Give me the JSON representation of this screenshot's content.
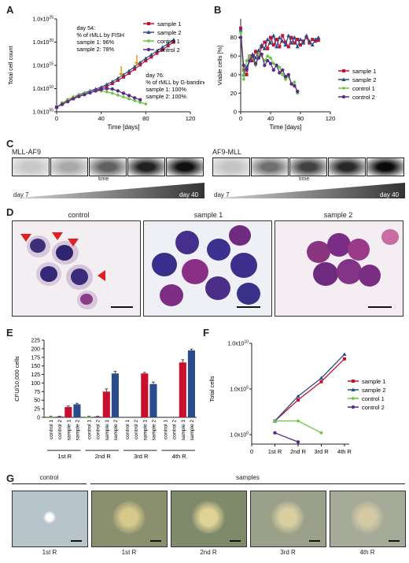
{
  "panels": {
    "A": "A",
    "B": "B",
    "C": "C",
    "D": "D",
    "E": "E",
    "F": "F",
    "G": "G"
  },
  "colors": {
    "sample1": "#c8102e",
    "sample2": "#2b4c8c",
    "control1": "#6cc644",
    "control2": "#5b2a86",
    "annotation": "#e39b1f"
  },
  "chart_data": [
    {
      "id": "A",
      "type": "line",
      "ylabel": "Total cell count",
      "xlabel": "Time [days]",
      "xticks": [
        "0",
        "40",
        "80",
        "120"
      ],
      "xlim": [
        0,
        120
      ],
      "yscale": "log",
      "yticks": [
        "1.0x10^05",
        "1.0x10^10",
        "1.0x10^15",
        "1.0x10^20",
        "1.0x10^25"
      ],
      "ylim_log10": [
        5,
        25
      ],
      "legend": [
        "sample 1",
        "sample 2",
        "control 1",
        "control 2"
      ],
      "legend_position": "top-right",
      "annotations": [
        {
          "lines": [
            "day 54:",
            "% of rMLL by FISH",
            "sample 1: 96%",
            "sample 2: 78%"
          ]
        },
        {
          "lines": [
            "day 76:",
            "% of rMLL by G-banding",
            "sample 1: 100%",
            "sample 2: 100%"
          ]
        }
      ],
      "arrow_days": [
        58,
        72
      ],
      "series": [
        {
          "name": "sample 1",
          "x": [
            0,
            5,
            10,
            15,
            20,
            25,
            30,
            35,
            40,
            45,
            50,
            55,
            60,
            65,
            70,
            75,
            80,
            85,
            90,
            95,
            100,
            105
          ],
          "y_log10": [
            6,
            6.8,
            7.5,
            8.0,
            8.5,
            8.9,
            9.2,
            9.6,
            10.0,
            10.5,
            11.1,
            11.8,
            12.5,
            13.3,
            14.2,
            15.1,
            16.0,
            16.8,
            17.6,
            18.4,
            19.2,
            20.0
          ]
        },
        {
          "name": "sample 2",
          "x": [
            0,
            5,
            10,
            15,
            20,
            25,
            30,
            35,
            40,
            45,
            50,
            55,
            60,
            65,
            70,
            75,
            80,
            85,
            90,
            95,
            100,
            105
          ],
          "y_log10": [
            6,
            6.9,
            7.6,
            8.2,
            8.7,
            9.1,
            9.5,
            9.9,
            10.3,
            10.9,
            11.5,
            12.2,
            13.0,
            13.8,
            14.7,
            15.6,
            16.5,
            17.3,
            18.1,
            18.9,
            19.7,
            20.5
          ]
        },
        {
          "name": "control 1",
          "x": [
            0,
            5,
            10,
            15,
            20,
            25,
            30,
            35,
            40,
            45,
            50,
            55,
            60,
            65,
            70,
            75,
            80
          ],
          "y_log10": [
            6,
            6.9,
            7.6,
            8.2,
            8.6,
            9.0,
            9.3,
            9.5,
            9.5,
            9.3,
            9.0,
            8.6,
            8.2,
            7.8,
            7.4,
            7.0,
            6.7
          ]
        },
        {
          "name": "control 2",
          "x": [
            0,
            5,
            10,
            15,
            20,
            25,
            30,
            35,
            40,
            45,
            50,
            55,
            60,
            65,
            70,
            75
          ],
          "y_log10": [
            6,
            6.6,
            7.2,
            7.8,
            8.3,
            8.7,
            9.1,
            9.5,
            9.8,
            10.0,
            9.9,
            9.5,
            9.0,
            8.5,
            8.0,
            7.6
          ]
        }
      ]
    },
    {
      "id": "B",
      "type": "line",
      "ylabel": "Viable cells [%]",
      "xlabel": "Time [days]",
      "xticks": [
        "0",
        "40",
        "80",
        "120"
      ],
      "xlim": [
        0,
        120
      ],
      "yticks": [
        "0",
        "20",
        "40",
        "60",
        "80"
      ],
      "ylim": [
        0,
        100
      ],
      "legend": [
        "sample 1",
        "sample 2",
        "control 1",
        "control 2"
      ],
      "legend_position": "right",
      "series": [
        {
          "name": "sample 1",
          "x": [
            0,
            4,
            8,
            12,
            16,
            20,
            24,
            28,
            32,
            36,
            40,
            44,
            48,
            52,
            56,
            60,
            64,
            68,
            72,
            76,
            80,
            84,
            88,
            92,
            96,
            100,
            104
          ],
          "y": [
            90,
            45,
            40,
            60,
            55,
            65,
            58,
            70,
            75,
            68,
            80,
            72,
            78,
            70,
            82,
            75,
            70,
            80,
            74,
            78,
            72,
            76,
            80,
            74,
            78,
            76,
            77
          ]
        },
        {
          "name": "sample 2",
          "x": [
            0,
            4,
            8,
            12,
            16,
            20,
            24,
            28,
            32,
            36,
            40,
            44,
            48,
            52,
            56,
            60,
            64,
            68,
            72,
            76,
            80,
            84,
            88,
            92,
            96,
            100,
            104
          ],
          "y": [
            88,
            40,
            48,
            55,
            62,
            58,
            66,
            72,
            68,
            78,
            74,
            82,
            70,
            80,
            76,
            72,
            82,
            74,
            80,
            70,
            78,
            74,
            82,
            76,
            72,
            78,
            80
          ]
        },
        {
          "name": "control 1",
          "x": [
            0,
            4,
            8,
            12,
            16,
            20,
            24,
            28,
            32,
            36,
            40,
            44,
            48,
            52,
            56,
            60,
            64,
            68,
            72,
            76
          ],
          "y": [
            85,
            35,
            55,
            60,
            58,
            50,
            62,
            60,
            55,
            60,
            58,
            52,
            50,
            48,
            40,
            35,
            38,
            30,
            32,
            20
          ]
        },
        {
          "name": "control 2",
          "x": [
            0,
            4,
            8,
            12,
            16,
            20,
            24,
            28,
            32,
            36,
            40,
            44,
            48,
            52,
            56,
            60,
            64,
            68,
            72,
            76
          ],
          "y": [
            80,
            50,
            45,
            55,
            60,
            52,
            58,
            62,
            50,
            55,
            52,
            45,
            50,
            42,
            45,
            38,
            40,
            30,
            28,
            22
          ]
        }
      ]
    },
    {
      "id": "E",
      "type": "bar",
      "ylabel": "CFU/10,000 cells",
      "yticks": [
        "0",
        "25",
        "50",
        "75",
        "100",
        "125",
        "150",
        "175",
        "200",
        "225"
      ],
      "ylim": [
        0,
        225
      ],
      "groups": [
        "1st R",
        "2nd R",
        "3rd R",
        "4th R"
      ],
      "categories": [
        [
          "control 1",
          "control 2",
          "sample 1",
          "sample 2"
        ],
        [
          "control 1",
          "control 2",
          "sample 1",
          "sample 2"
        ],
        [
          "control 1",
          "control 2",
          "sample 1",
          "sample 2"
        ],
        [
          "control 1",
          "control 2",
          "sample 1",
          "sample 2"
        ]
      ],
      "values": [
        [
          2,
          2,
          30,
          38
        ],
        [
          2,
          2,
          75,
          128
        ],
        [
          0,
          0,
          128,
          97
        ],
        [
          0,
          0,
          160,
          195
        ]
      ],
      "errors": [
        [
          1,
          1,
          3,
          3
        ],
        [
          1,
          1,
          8,
          6
        ],
        [
          0,
          0,
          3,
          6
        ],
        [
          0,
          0,
          8,
          4
        ]
      ]
    },
    {
      "id": "F",
      "type": "line",
      "ylabel": "Total cells",
      "yscale": "log",
      "yticks": [
        "1.0x10^0",
        "1.0x10^5",
        "1.0x10^10"
      ],
      "ylim_log10": [
        0,
        10
      ],
      "xticks": [
        "0",
        "1st R",
        "2nd R",
        "3rd R",
        "4th R"
      ],
      "legend": [
        "sample 1",
        "sample 2",
        "control 1",
        "control 2"
      ],
      "legend_position": "right",
      "series": [
        {
          "name": "sample 1",
          "x": [
            1,
            2,
            3,
            4
          ],
          "y_log10": [
            1.5,
            3.8,
            5.8,
            8.3
          ]
        },
        {
          "name": "sample 2",
          "x": [
            1,
            2,
            3,
            4
          ],
          "y_log10": [
            1.5,
            4.2,
            6.2,
            8.8
          ]
        },
        {
          "name": "control 1",
          "x": [
            1,
            2,
            3
          ],
          "y_log10": [
            1.5,
            1.5,
            0.2
          ]
        },
        {
          "name": "control 2",
          "x": [
            1,
            2
          ],
          "y_log10": [
            0.2,
            -0.8
          ]
        }
      ]
    }
  ],
  "blots": {
    "left_title": "MLL-AF9",
    "right_title": "AF9-MLL",
    "start": "day 7",
    "end": "day 40",
    "axis": "time"
  },
  "micro": {
    "control": "control",
    "sample1": "sample 1",
    "sample2": "sample 2"
  },
  "colonies": {
    "control_header": "control",
    "samples_header": "samples",
    "labels": [
      "1st R",
      "1st R",
      "2nd R",
      "3rd R",
      "4th R"
    ]
  }
}
